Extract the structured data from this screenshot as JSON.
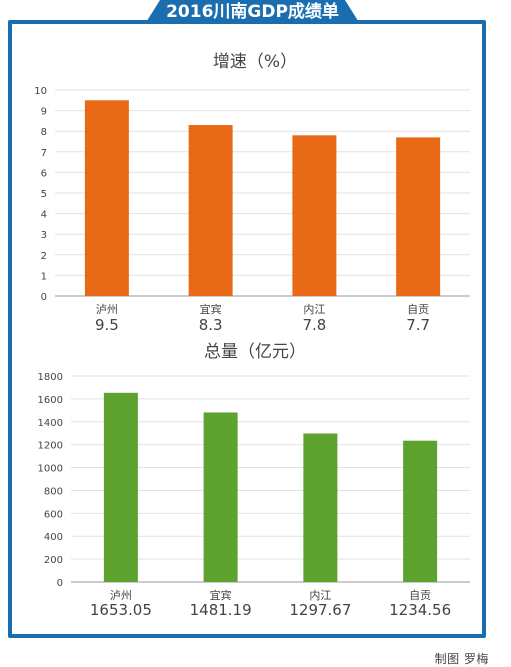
{
  "header": {
    "title": "2016川南GDP成绩单"
  },
  "credit": "制图 罗梅",
  "chart_data": [
    {
      "type": "bar",
      "title": "增速（%）",
      "categories": [
        "泸州",
        "宜宾",
        "内江",
        "自贡"
      ],
      "values": [
        9.5,
        8.3,
        7.8,
        7.7
      ],
      "value_labels": [
        "9.5",
        "8.3",
        "7.8",
        "7.7"
      ],
      "ylim": [
        0,
        10
      ],
      "yticks": [
        0,
        1,
        2,
        3,
        4,
        5,
        6,
        7,
        8,
        9,
        10
      ],
      "grid": true,
      "color": "#e96a16"
    },
    {
      "type": "bar",
      "title": "总量（亿元）",
      "categories": [
        "泸州",
        "宜宾",
        "内江",
        "自贡"
      ],
      "values": [
        1653.05,
        1481.19,
        1297.67,
        1234.56
      ],
      "value_labels": [
        "1653.05",
        "1481.19",
        "1297.67",
        "1234.56"
      ],
      "ylim": [
        0,
        1800
      ],
      "yticks": [
        0,
        200,
        400,
        600,
        800,
        1000,
        1200,
        1400,
        1600,
        1800
      ],
      "grid": true,
      "color": "#5da22e"
    }
  ]
}
